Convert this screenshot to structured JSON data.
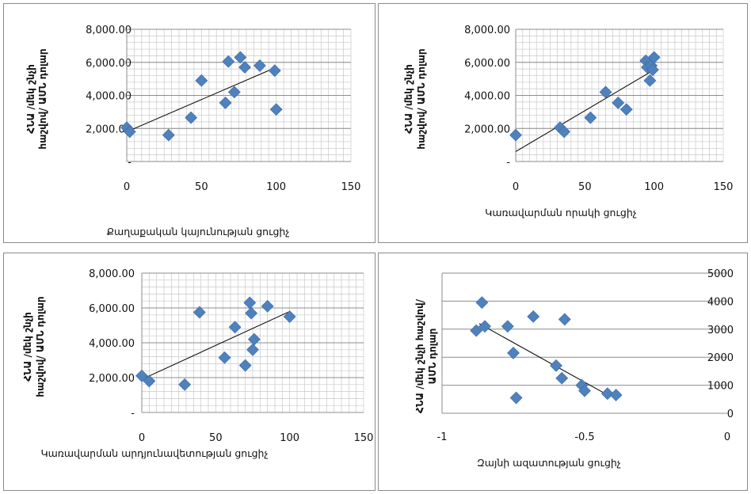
{
  "chart_data": [
    {
      "type": "scatter",
      "title": "",
      "xlabel": "Քաղաքական կայունության ցուցիչ",
      "ylabel": [
        "ՀՆԱ /մեկ շնչի",
        "հաշվով/ ԱՄՆ դոլար"
      ],
      "xlim": [
        0,
        150
      ],
      "ylim": [
        0,
        8000
      ],
      "xticks": [
        "0",
        "50",
        "100",
        "150"
      ],
      "yticks": [
        "-",
        "2,000.00",
        "4,000.00",
        "6,000.00",
        "8,000.00"
      ],
      "points": [
        [
          0,
          2050
        ],
        [
          2,
          1800
        ],
        [
          28,
          1600
        ],
        [
          43,
          2650
        ],
        [
          50,
          4900
        ],
        [
          66,
          3550
        ],
        [
          68,
          6050
        ],
        [
          72,
          4200
        ],
        [
          76,
          6300
        ],
        [
          79,
          5700
        ],
        [
          89,
          5800
        ],
        [
          99,
          5500
        ],
        [
          100,
          3150
        ]
      ],
      "trendline": [
        [
          0,
          1800
        ],
        [
          100,
          5700
        ]
      ],
      "grid": "vertical fine + horizontal",
      "marker_color": "#4f81bd"
    },
    {
      "type": "scatter",
      "title": "",
      "xlabel": "Կառավարման որակի ցուցիչ",
      "ylabel": [
        "ՀՆԱ /մեկ շնչի",
        "հաշվով/ ԱՄՆ դոլար"
      ],
      "xlim": [
        0,
        150
      ],
      "ylim": [
        0,
        8000
      ],
      "xticks": [
        "0",
        "50",
        "100",
        "150"
      ],
      "yticks": [
        "-",
        "2,000.00",
        "4,000.00",
        "6,000.00",
        "8,000.00"
      ],
      "points": [
        [
          0,
          1600
        ],
        [
          32,
          2050
        ],
        [
          35,
          1800
        ],
        [
          54,
          2650
        ],
        [
          65,
          4200
        ],
        [
          74,
          3550
        ],
        [
          80,
          3150
        ],
        [
          94,
          6100
        ],
        [
          95,
          5700
        ],
        [
          97,
          4900
        ],
        [
          98,
          5800
        ],
        [
          99,
          5550
        ],
        [
          100,
          6300
        ]
      ],
      "trendline": [
        [
          0,
          600
        ],
        [
          100,
          5550
        ]
      ],
      "grid": "vertical fine + horizontal",
      "marker_color": "#4f81bd"
    },
    {
      "type": "scatter",
      "title": "",
      "xlabel": "Կառավարման արդյունավետության ցուցիչ",
      "ylabel": [
        "ՀՆԱ /մեկ շնչի",
        "հաշվով/ ԱՄՆ դոլար"
      ],
      "xlim": [
        0,
        150
      ],
      "ylim": [
        0,
        8000
      ],
      "xticks": [
        "0",
        "50",
        "100",
        "150"
      ],
      "yticks": [
        "-",
        "2,000.00",
        "4,000.00",
        "6,000.00",
        "8,000.00"
      ],
      "points": [
        [
          0,
          2100
        ],
        [
          5,
          1800
        ],
        [
          29,
          1600
        ],
        [
          39,
          5750
        ],
        [
          56,
          3150
        ],
        [
          63,
          4900
        ],
        [
          70,
          2700
        ],
        [
          73,
          6300
        ],
        [
          74,
          5700
        ],
        [
          75,
          3600
        ],
        [
          76,
          4200
        ],
        [
          85,
          6100
        ],
        [
          100,
          5500
        ]
      ],
      "trendline": [
        [
          0,
          1900
        ],
        [
          100,
          5800
        ]
      ],
      "grid": "vertical fine + horizontal",
      "marker_color": "#4f81bd"
    },
    {
      "type": "scatter",
      "title": "",
      "xlabel": "Զայնի ազատության ցուցիչ",
      "ylabel": [
        "ՀՆԱ /մեկ շնչի հաշվով/",
        "ԱՄՆ դոլար"
      ],
      "xlim": [
        -1,
        0
      ],
      "ylim": [
        0,
        5000
      ],
      "xticks": [
        "-1",
        "-0.5",
        "0"
      ],
      "yticks": [
        "0",
        "1000",
        "2000",
        "3000",
        "4000",
        "5000"
      ],
      "points": [
        [
          -0.88,
          2950
        ],
        [
          -0.86,
          3950
        ],
        [
          -0.85,
          3100
        ],
        [
          -0.77,
          3100
        ],
        [
          -0.75,
          2150
        ],
        [
          -0.74,
          550
        ],
        [
          -0.68,
          3450
        ],
        [
          -0.6,
          1700
        ],
        [
          -0.58,
          1250
        ],
        [
          -0.57,
          3350
        ],
        [
          -0.51,
          1000
        ],
        [
          -0.5,
          800
        ],
        [
          -0.42,
          700
        ],
        [
          -0.39,
          650
        ]
      ],
      "trendline": [
        [
          -0.87,
          3200
        ],
        [
          -0.41,
          600
        ]
      ],
      "grid": "horizontal",
      "marker_color": "#4f81bd"
    }
  ]
}
